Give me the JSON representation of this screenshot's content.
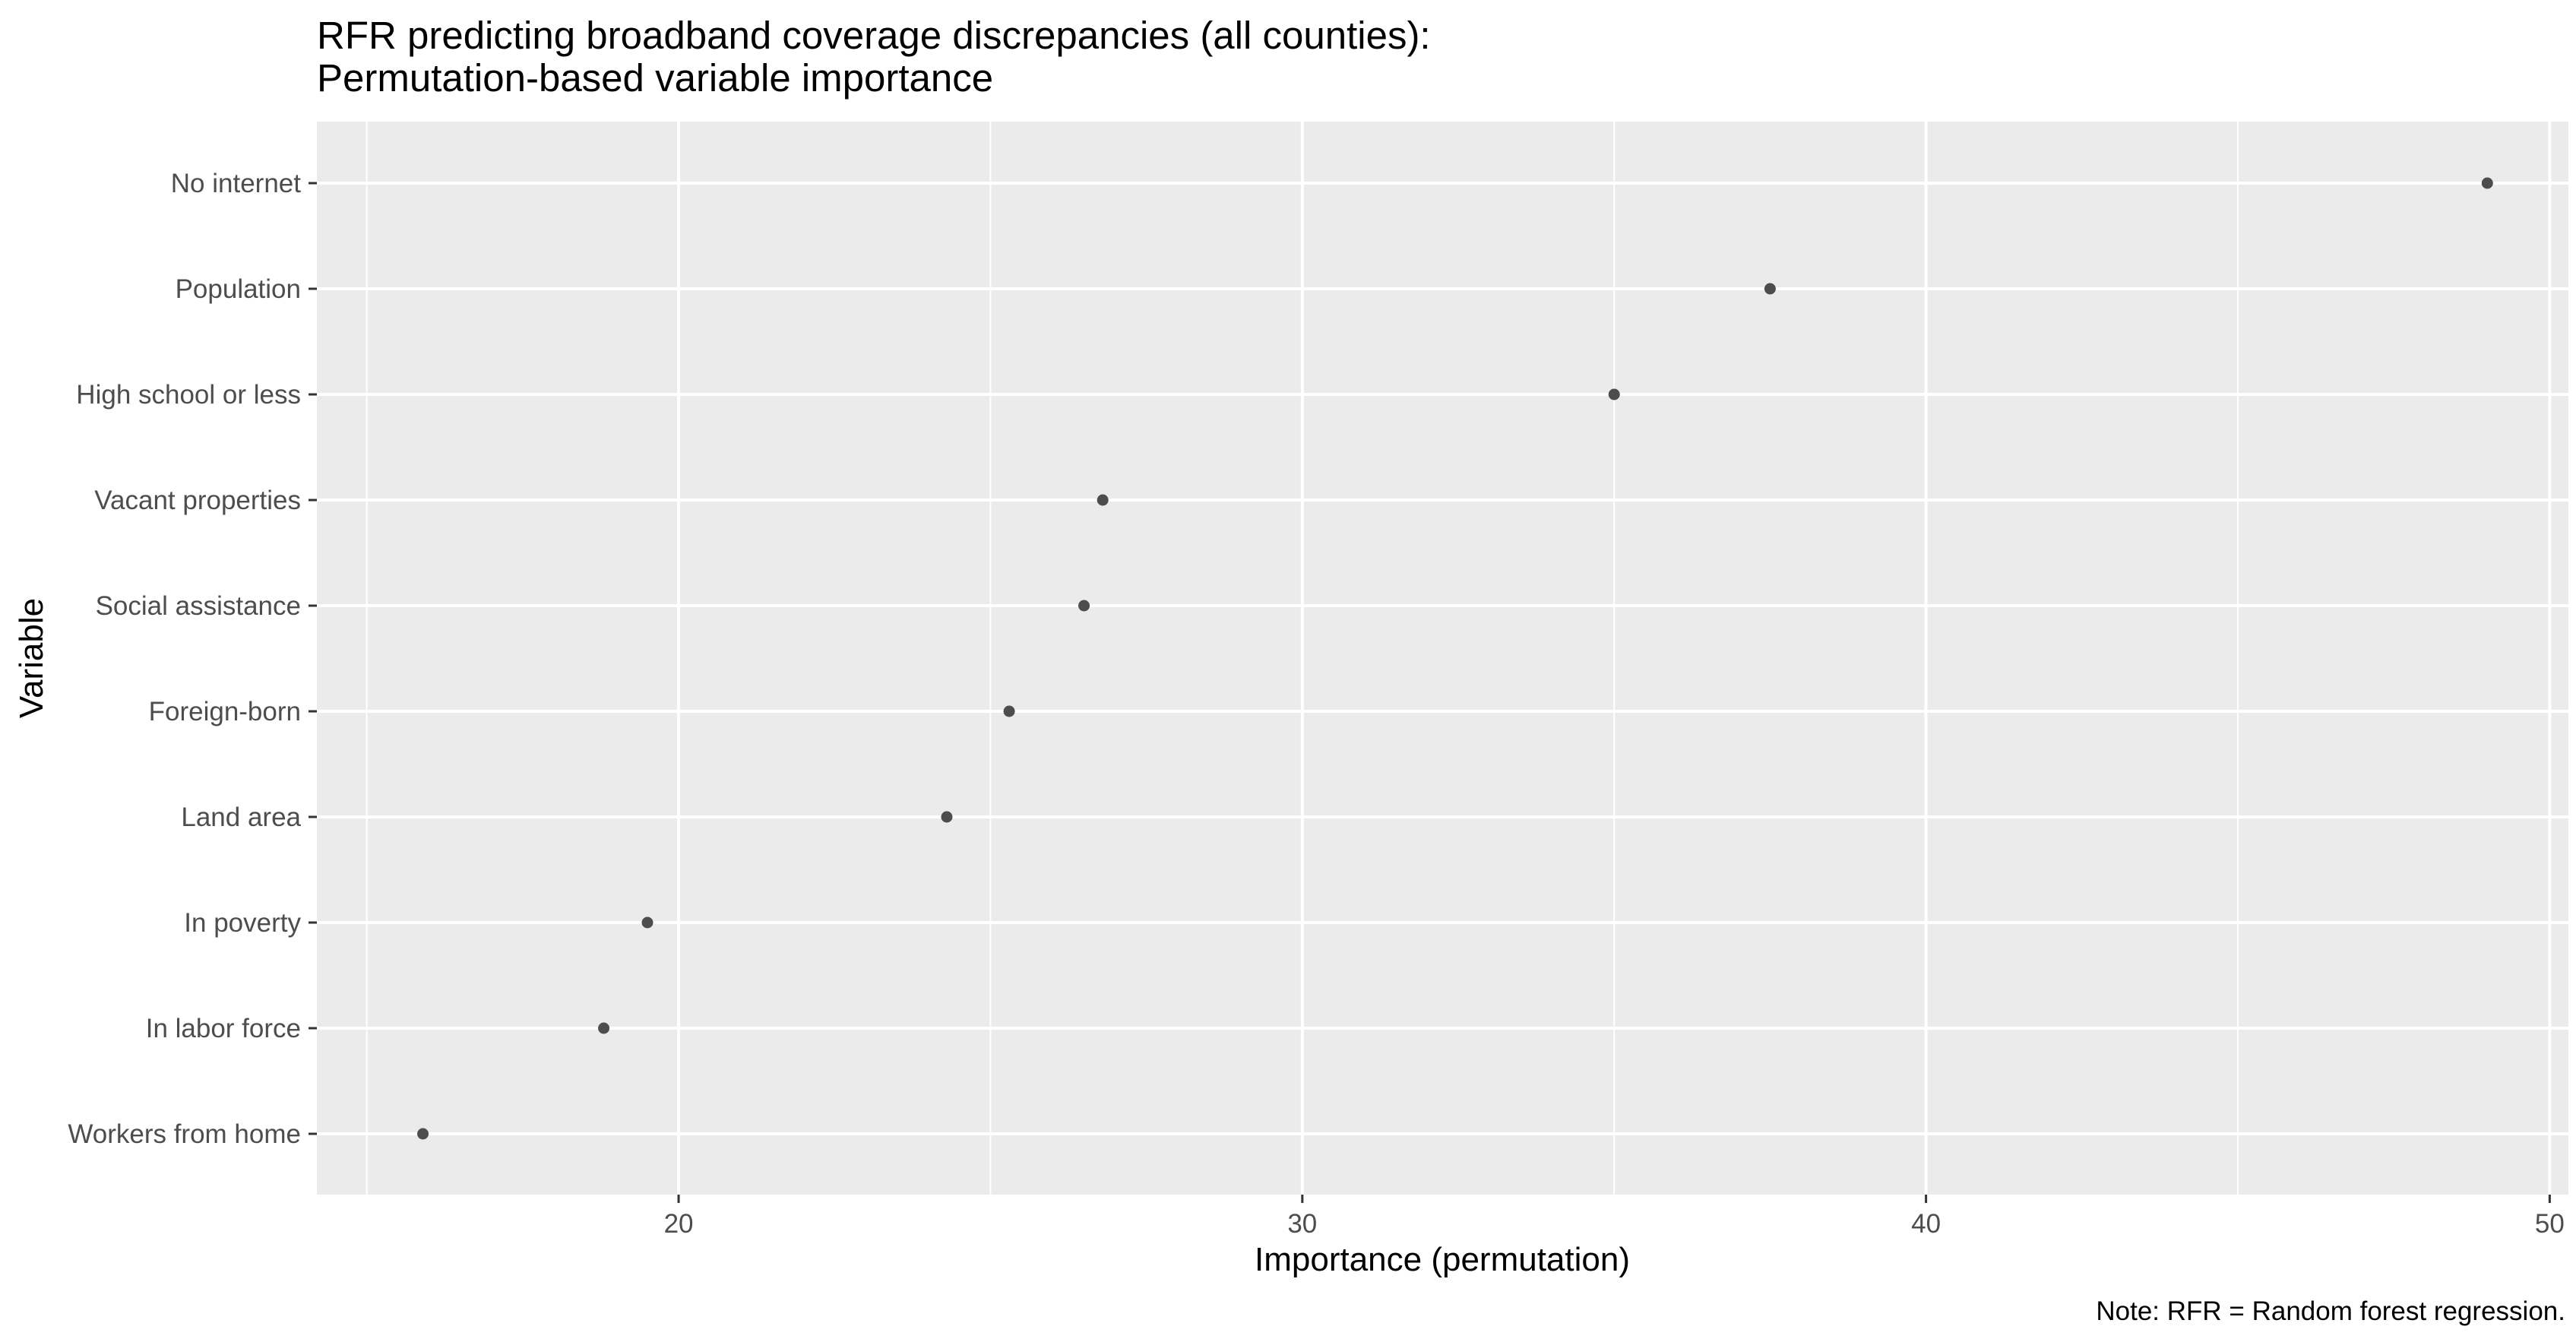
{
  "chart_data": {
    "type": "scatter",
    "title_lines": [
      "RFR predicting broadband coverage discrepancies (all counties):",
      "Permutation-based variable importance"
    ],
    "xlabel": "Importance (permutation)",
    "ylabel": "Variable",
    "caption": "Note: RFR = Random forest regression.",
    "xlim": [
      14.2,
      50.3
    ],
    "x_ticks": [
      20,
      30,
      40,
      50
    ],
    "x_tick_labels": [
      "20",
      "30",
      "40",
      "50"
    ],
    "x_minor_ticks": [
      15,
      25,
      35,
      45
    ],
    "grid": true,
    "legend": "none",
    "background_color": "#ebebeb",
    "grid_color": "#ffffff",
    "point_color": "#4d4d4d",
    "categories": [
      "No internet",
      "Population",
      "High school or less",
      "Vacant properties",
      "Social assistance",
      "Foreign-born",
      "Land area",
      "In poverty",
      "In labor force",
      "Workers from home"
    ],
    "values": [
      49.0,
      37.5,
      35.0,
      26.8,
      26.5,
      25.3,
      24.3,
      19.5,
      18.8,
      15.9
    ]
  }
}
